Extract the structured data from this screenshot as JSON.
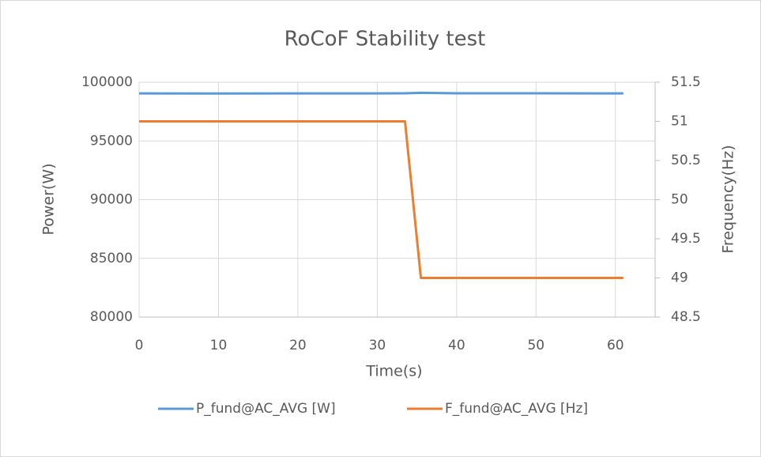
{
  "chart_data": {
    "type": "line",
    "title": "RoCoF Stability test",
    "x_label": "Time(s)",
    "y_label": "Power(W)",
    "y2_label": "Frequency(Hz)",
    "x": [
      0,
      10,
      20,
      30,
      33.5,
      35.5,
      40,
      50,
      61
    ],
    "series": [
      {
        "name": "P_fund@AC_AVG [W]",
        "color": "#5b9bd5",
        "values": [
          99050,
          99040,
          99050,
          99050,
          99060,
          99100,
          99060,
          99060,
          99050
        ]
      },
      {
        "name": "F_fund@AC_AVG [Hz]",
        "color": "#ed7d31",
        "axis": "y2",
        "values": [
          51,
          51,
          51,
          51,
          51,
          49,
          49,
          49,
          49
        ]
      }
    ],
    "xlim": [
      0,
      65
    ],
    "xticks": [
      0,
      10,
      20,
      30,
      40,
      50,
      60
    ],
    "ylim": [
      80000,
      100000
    ],
    "yticks": [
      80000,
      85000,
      90000,
      95000,
      100000
    ],
    "y2lim": [
      48.5,
      51.5
    ],
    "y2ticks": [
      48.5,
      49,
      49.5,
      50,
      50.5,
      51,
      51.5
    ],
    "grid": true,
    "legend": "bottom"
  }
}
